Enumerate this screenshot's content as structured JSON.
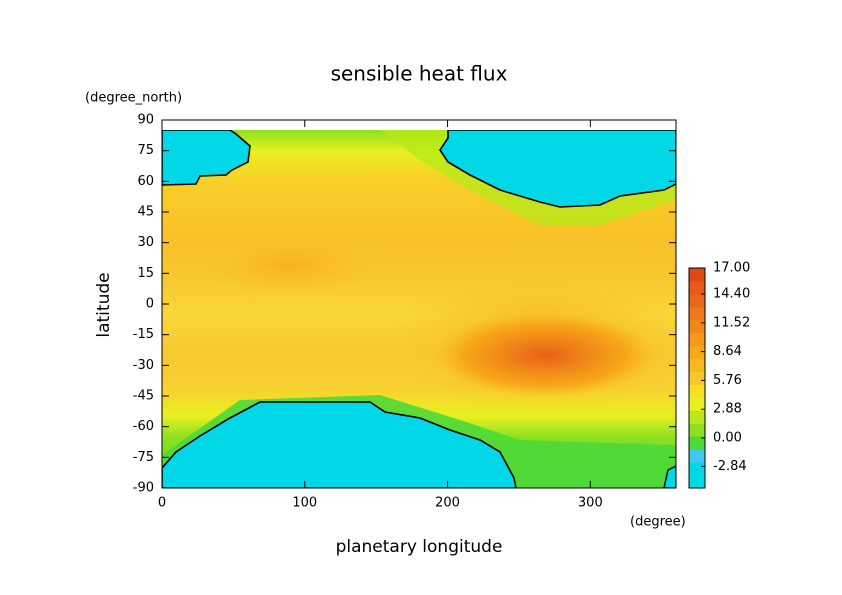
{
  "chart_data": {
    "type": "contour",
    "title": "sensible heat flux",
    "xlabel": "planetary longitude",
    "xunit": "(degree)",
    "ylabel": "latitude",
    "yunit": "(degree_north)",
    "xlim": [
      0,
      360
    ],
    "xticks": [
      0,
      100,
      200,
      300
    ],
    "ylim": [
      -90,
      90
    ],
    "yticks": [
      -90,
      -75,
      -60,
      -45,
      -30,
      -15,
      0,
      15,
      30,
      45,
      60,
      75,
      90
    ],
    "colorbar": {
      "lim": [
        -5,
        17
      ],
      "ticks": [
        {
          "value": 17,
          "label": "17.00"
        },
        {
          "value": 14.4,
          "label": "14.40"
        },
        11.52,
        8.64,
        5.76,
        2.88,
        {
          "value": 0,
          "label": "0.00"
        },
        -2.84
      ],
      "colors": [
        "#00d8e8",
        "#00d8e8",
        "#40c8f0",
        "#4ed838",
        "#8ce020",
        "#b8e818",
        "#e8f020",
        "#f8e020",
        "#f8c828",
        "#f8b820",
        "#f8a818",
        "#f89818",
        "#f08818",
        "#f07818",
        "#e86818",
        "#e85818",
        "#e04818"
      ]
    }
  }
}
